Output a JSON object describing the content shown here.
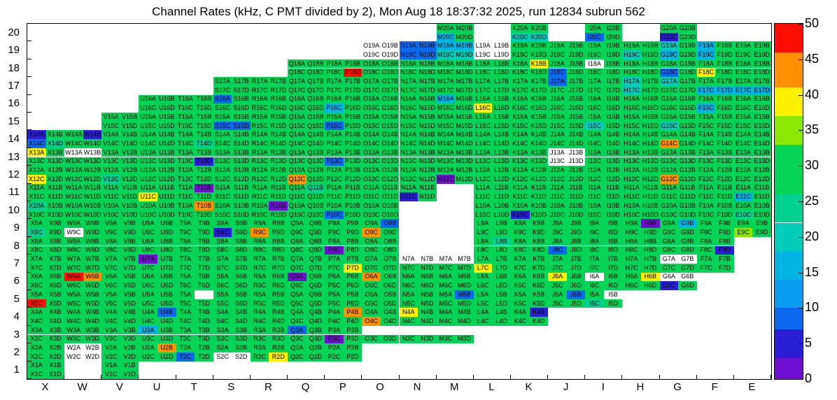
{
  "chart_data": {
    "type": "heatmap",
    "title": "Channel Rates (kHz, C PMT divided by 2), Mon Aug 18 18:37:32 2025, run 12834 subrun 562",
    "x_categories": [
      "X",
      "W",
      "V",
      "U",
      "T",
      "S",
      "R",
      "Q",
      "P",
      "O",
      "N",
      "M",
      "L",
      "K",
      "J",
      "I",
      "H",
      "G",
      "F",
      "E"
    ],
    "y_categories_top_to_bottom": [
      "20",
      "19",
      "18",
      "17",
      "16",
      "15",
      "14",
      "13",
      "12",
      "11",
      "10",
      "9",
      "8",
      "7",
      "6",
      "5",
      "4",
      "3",
      "2",
      "1"
    ],
    "subcells": [
      "A",
      "B",
      "C",
      "D"
    ],
    "cell_label_format": "{column}{row}{subcell}",
    "legend_position": "right",
    "grid": false,
    "colorbar": {
      "min": 0,
      "max": 50,
      "tick_step": 5,
      "tick_labels": [
        "0",
        "5",
        "10",
        "15",
        "20",
        "25",
        "30",
        "35",
        "40",
        "45",
        "50"
      ],
      "bands": [
        {
          "from": 0,
          "to": 3,
          "color": "#6f0fd0"
        },
        {
          "from": 3,
          "to": 7,
          "color": "#2a1ed6"
        },
        {
          "from": 7,
          "to": 10,
          "color": "#0b69ee"
        },
        {
          "from": 10,
          "to": 14,
          "color": "#0a9cf0"
        },
        {
          "from": 14,
          "to": 18,
          "color": "#00b4e4"
        },
        {
          "from": 18,
          "to": 22,
          "color": "#00cdb9"
        },
        {
          "from": 22,
          "to": 26,
          "color": "#00d18f"
        },
        {
          "from": 26,
          "to": 33,
          "color": "#04d455"
        },
        {
          "from": 33,
          "to": 37,
          "color": "#8ae800"
        },
        {
          "from": 37,
          "to": 41,
          "color": "#fdf000"
        },
        {
          "from": 41,
          "to": 46,
          "color": "#ff9100"
        },
        {
          "from": 46,
          "to": 50,
          "color": "#ff0e05"
        }
      ]
    },
    "palette": {
      "r": "#ff0e05",
      "o": "#ff9100",
      "y": "#fdf000",
      "Y": "#8ae800",
      "g": "#04d455",
      "G": "#00d18f",
      "t": "#00cdb9",
      "c": "#00b4e4",
      "b": "#0b69ee",
      "B": "#2a1ed6",
      "p": "#6f0fd0",
      "w": "#ffffff"
    },
    "palette_value_khz": {
      "r": 48,
      "o": 43,
      "y": 39,
      "Y": 35,
      "g": 28,
      "G": 24,
      "t": 20,
      "c": 16,
      "b": 11,
      "B": 5,
      "p": 1.5,
      "w": 0
    },
    "rows": [
      {
        "row": "20",
        "groups": "M:ggcg K:ggtt I:ggbg G:ggBg"
      },
      {
        "row": "19",
        "groups": "O:wwww N:bbbb M:cctt L:wwww K:gggg J:gggg I:gggg H:ggtg G:tgcg F:cgcg E:gggg"
      },
      {
        "row": "18",
        "groups": "Q:gggg P:gggr O:gggg N:gggg M:gggg L:gggg K:gygg J:ggbg I:wggg H:gggg G:ggbg F:ggyg E:gggg"
      },
      {
        "row": "17",
        "groups": "S:gggg R:gggg Q:gggg P:gggg O:gggg N:gggg M:gggg L:gggg K:gggg J:bggg I:gggg H:tgtg G:tggg F:ggcc E:ggcc"
      },
      {
        "row": "16",
        "groups": "U:gggg T:gggg S:bggg R:gggg Q:gggg P:ggcg O:gggg N:gggg M:cggg L:ggyg K:gggg J:gggg I:gggg H:gggg G:gggg F:ggcg E:gggg"
      },
      {
        "row": "15",
        "groups": "V:gggg U:gggg T:gggg S:ggbb R:gggg Q:gggg P:ggbg O:gggg N:gggg M:gggg L:gggg K:gggg J:gggg I:ggtg H:gggg G:ggtg F:gggg E:gggg"
      },
      {
        "row": "14",
        "groups": "X:BgbG W:gBgg V:gggg U:gggg T:gggG S:gggg R:gggg Q:gggg P:gggg O:gggg N:gggg M:gggg L:gggg K:gggg J:gggg I:gggg H:gggg G:ggog F:gggg E:gggg"
      },
      {
        "row": "13",
        "groups": "X:yggg W:wwgg V:gggg U:gggg T:gggB S:gggg R:gggg Q:gggg P:ggbg O:gggg N:gggg M:gggg L:gggg K:gggg J:wwww I:gggg H:gggg G:gggg F:gggg E:gggg"
      },
      {
        "row": "12",
        "groups": "X:ggyg W:gggg V:ggGg U:gggg T:gggg S:gggg R:gggg Q:ggog P:gggg O:gggg N:gggg M:ggpg L:gggg K:gggg J:gggg I:gggg H:gggg G:ggog F:gggg E:gggg"
      },
      {
        "row": "11",
        "groups": "X:gggg W:gggg V:gggg U:ggyg T:gpgg S:gggg R:gggg Q:gGgg P:gggg O:gggg N:ggBg L:gggg K:gggg J:gggg I:gggg H:gggg G:gggg F:gggg E:ggcg"
      },
      {
        "row": "10",
        "groups": "X:Gggg W:gggg V:gggg U:gggg T:gogg S:gggg R:gpgg Q:gggg P:ggbg O:gggg L:gggg K:ggBg J:gggg I:gggg H:gggg G:gggg F:gggg E:ggGg"
      },
      {
        "row": "9",
        "groups": "X:ggGg W:ggwg V:gggg U:gggg T:gggg S:ggBg R:ggog Q:gggg P:gggg O:gbog L:gggg K:gggg J:gggg I:gggg H:gpgg G:gcgg F:gggg E:ggYg"
      },
      {
        "row": "8",
        "groups": "X:gggg W:gggg V:gggg U:gggg T:gggg S:gggg R:gggg Q:gggg P:ggpg O:gggg L:gGgg K:gggg J:ggbg I:gggg H:gggg G:gggg F:gggB"
      },
      {
        "row": "7",
        "groups": "X:gggg W:gggg V:gggg U:pggg T:gggg S:gggg R:gggg Q:gggg P:gggy O:gggg N:wwgg M:wwgg L:ggyg K:gggg J:gggg I:gggg H:gggg G:wwgg F:gggg"
      },
      {
        "row": "6",
        "groups": "X:gggg W:rogg V:gggg U:gggg T:gggg S:gggg R:gggg Q:pggg P:gggg O:oggg N:gggg M:gggg L:gggg K:gggg J:yggg I:wggg H:gygg G:wwBg"
      },
      {
        "row": "5",
        "groups": "X:ggrg W:gggg V:gggg U:gggg T:gxgg S:gggg R:gggg Q:gggg P:gggg O:gggg N:gggg M:gbgg L:gggg K:gggg J:gbgg I:gwGg"
      },
      {
        "row": "4",
        "groups": "X:gggg W:gggg V:gggg U:gbgg T:gggg S:gggg R:gggg Q:gggg P:gogg O:ggog N:yggg M:gggg L:gggg K:gBgg"
      },
      {
        "row": "3",
        "groups": "X:gggg W:gggg V:gggg U:cggg T:gggg S:gggg R:gggg Q:bggg P:ggpg O:xxgg N:xxgg M:xxgg"
      },
      {
        "row": "2",
        "groups": "X:gggg W:wwww V:gggg U:gogg T:ggbg S:ggww R:gggy Q:gggg P:gggg"
      },
      {
        "row": "1",
        "groups": "X:gggg V:gggg"
      }
    ]
  }
}
